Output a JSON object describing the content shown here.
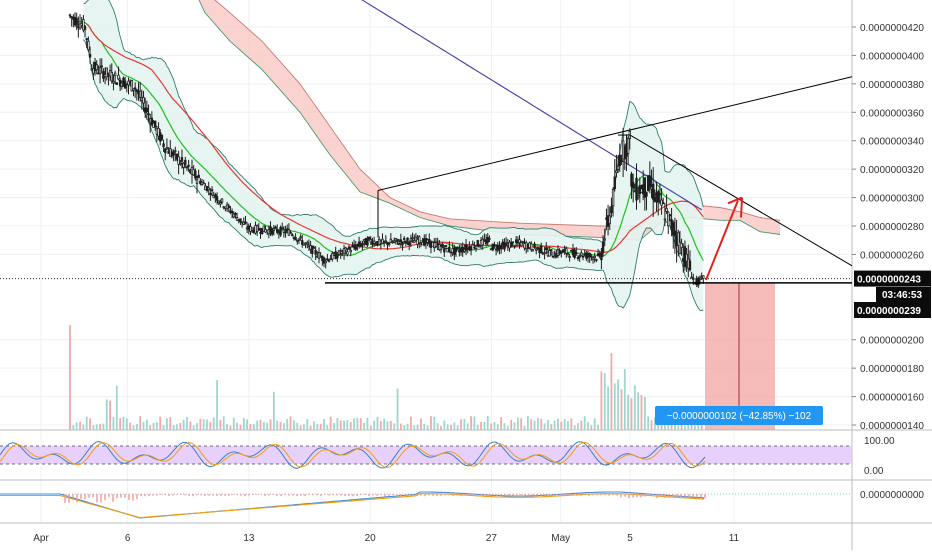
{
  "colors": {
    "bull": "#26a69a",
    "bear": "#ef5350",
    "candle": "#1e1e1e",
    "ma_fast": "#1fbf1f",
    "ma_red": "#e53935",
    "ma_slow": "#3f3faa",
    "bb": "#2e7d6e",
    "bb_fill": "#e3f4ef",
    "cloud_fill": "#f8c4c0",
    "cloud_line": "#c97b6e",
    "rsi_band": "#e3c9fb",
    "rsi_k": "#3b82c4",
    "rsi_d": "#f39c12",
    "macd_line": "#3b8fd9",
    "macd_signal": "#f39c12",
    "measure_fill": "#f2a4a0",
    "label_blue": "#2196f3",
    "arrow": "#e8201c"
  },
  "chart_data": [
    {
      "type": "candlestick",
      "title": "",
      "price_axis": {
        "range": [
          1.4e-08,
          4.4e-08
        ],
        "ticks": [
          "0.0000000140",
          "0.0000000160",
          "0.0000000180",
          "0.0000000200",
          "0.0000000260",
          "0.0000000280",
          "0.0000000300",
          "0.0000000320",
          "0.0000000340",
          "0.0000000360",
          "0.0000000380",
          "0.0000000400",
          "0.0000000420"
        ],
        "last_price_label": "0.0000000243",
        "countdown_label": "03:46:53",
        "support_label": "0.0000000239"
      },
      "time_axis": {
        "labels": [
          "Apr",
          "6",
          "13",
          "20",
          "27",
          "May",
          "5",
          "11"
        ]
      },
      "grid": true,
      "indicators": [
        "moving averages (green, red, blue)",
        "Bollinger bands",
        "Ichimoku cloud",
        "volume"
      ],
      "key_points": [
        {
          "x": "Apr",
          "close": 4.3e-08
        },
        {
          "x": "6",
          "close": 3.8e-08
        },
        {
          "x": "13",
          "close": 2.78e-08
        },
        {
          "x": "20",
          "close": 2.7e-08
        },
        {
          "x": "27",
          "close": 2.65e-08
        },
        {
          "x": "May",
          "close": 2.62e-08
        },
        {
          "x": "5",
          "close": 3.4e-08
        },
        {
          "x": "10",
          "close": 2.43e-08
        }
      ],
      "annotations": {
        "measure_label": "−0.0000000102 (−42.85%) −102",
        "pattern": "symmetrical triangle with horizontal support",
        "target_arrow": "up from last price to triangle resistance"
      }
    },
    {
      "type": "line",
      "title": "",
      "indicator": "Stochastic RSI",
      "ticks": [
        "100.00",
        "0.00"
      ],
      "band": [
        20,
        80
      ]
    },
    {
      "type": "line",
      "title": "",
      "indicator": "MACD",
      "ticks": [
        "0.0000000000"
      ]
    }
  ]
}
